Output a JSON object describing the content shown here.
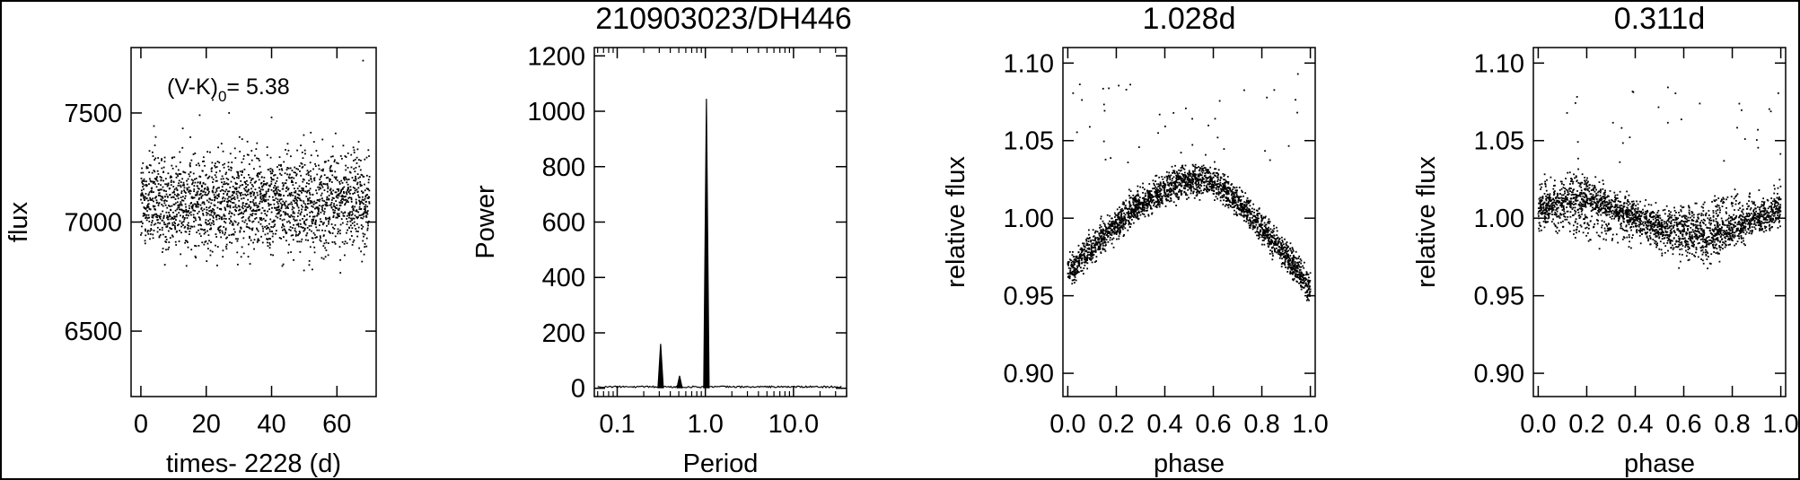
{
  "figure": {
    "title": "210903023/DH446"
  },
  "chart_data": [
    {
      "id": "lightcurve",
      "type": "scatter",
      "title": "",
      "xlabel": "times- 2228 (d)",
      "ylabel": "flux",
      "xlim": [
        -3,
        72
      ],
      "ylim": [
        6200,
        7800
      ],
      "xticks": [
        0,
        20,
        40,
        60
      ],
      "yticks": [
        6500,
        7000,
        7500
      ],
      "annotation": {
        "base": "(V-K)",
        "sub": "0",
        "rest": "= 5.38"
      },
      "grid": false,
      "points": {
        "n": 2200,
        "x_range": [
          0,
          70
        ],
        "center": 7090,
        "spread": 200,
        "outliers": [
          [
            18,
            7490
          ],
          [
            22,
            7560
          ],
          [
            27,
            7500
          ],
          [
            40,
            7480
          ],
          [
            52,
            7410
          ],
          [
            68,
            7740
          ],
          [
            4,
            7440
          ],
          [
            31,
            7380
          ]
        ]
      }
    },
    {
      "id": "periodogram",
      "type": "line",
      "title": "",
      "xlabel": "Period",
      "ylabel": "Power",
      "xscale": "log",
      "xlim": [
        0.055,
        40
      ],
      "ylim": [
        -30,
        1230
      ],
      "xticks": [
        0.1,
        1.0,
        10.0
      ],
      "xticklabels": [
        "0.1",
        "1.0",
        "10.0"
      ],
      "yticks": [
        0,
        200,
        400,
        600,
        800,
        1000,
        1200
      ],
      "grid": false,
      "peaks": [
        {
          "period": 0.311,
          "power": 160
        },
        {
          "period": 0.51,
          "power": 45
        },
        {
          "period": 1.028,
          "power": 1045
        }
      ]
    },
    {
      "id": "phase1",
      "type": "scatter",
      "title": "1.028d",
      "xlabel": "phase",
      "ylabel": "relative flux",
      "xlim": [
        -0.02,
        1.02
      ],
      "ylim": [
        0.885,
        1.11
      ],
      "xticks": [
        0.0,
        0.2,
        0.4,
        0.6,
        0.8,
        1.0
      ],
      "xticklabels": [
        "0.0",
        "0.2",
        "0.4",
        "0.6",
        "0.8",
        "1.0"
      ],
      "yticks": [
        0.9,
        0.95,
        1.0,
        1.05,
        1.1
      ],
      "yticklabels": [
        "0.90",
        "0.95",
        "1.00",
        "1.05",
        "1.10"
      ],
      "grid": false,
      "points": {
        "model": "asymmetric-peak",
        "min": 0.965,
        "max": 1.025,
        "peak_phase": 0.57,
        "scatter": 0.008,
        "n": 2400
      }
    },
    {
      "id": "phase2",
      "type": "scatter",
      "title": "0.311d",
      "xlabel": "phase",
      "ylabel": "relative flux",
      "xlim": [
        -0.02,
        1.02
      ],
      "ylim": [
        0.885,
        1.11
      ],
      "xticks": [
        0.0,
        0.2,
        0.4,
        0.6,
        0.8,
        1.0
      ],
      "xticklabels": [
        "0.0",
        "0.2",
        "0.4",
        "0.6",
        "0.8",
        "1.0"
      ],
      "yticks": [
        0.9,
        0.95,
        1.0,
        1.05,
        1.1
      ],
      "yticklabels": [
        "0.90",
        "0.95",
        "1.00",
        "1.05",
        "1.10"
      ],
      "grid": false,
      "points": {
        "model": "sinusoid-with-trend",
        "mean": 1.0,
        "amplitude": 0.014,
        "trend_spread": 0.035,
        "n": 2400
      }
    }
  ]
}
